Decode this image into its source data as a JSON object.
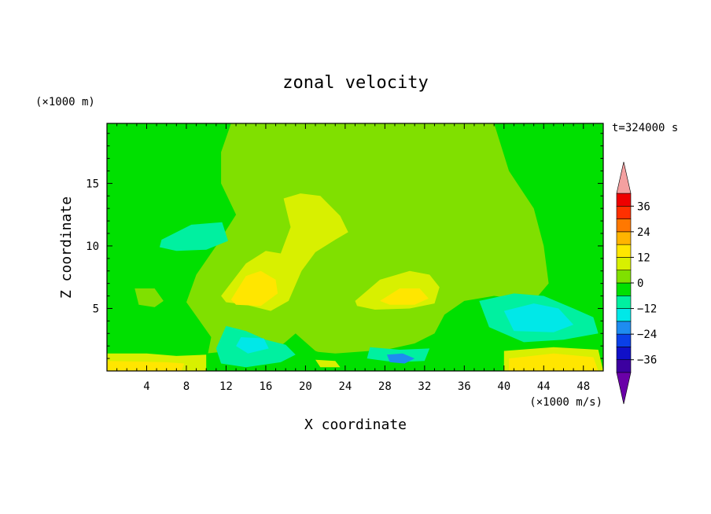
{
  "chart_data": {
    "type": "heatmap",
    "subtype": "filled-contour",
    "title": "zonal velocity",
    "xlabel": "X coordinate",
    "ylabel": "Z coordinate",
    "x_unit_label": "(×1000 m/s)",
    "y_unit_label": "(×1000 m)",
    "time_label": "t=324000 s",
    "xlim": [
      0,
      50
    ],
    "ylim": [
      0,
      19.8
    ],
    "x_ticks": [
      4,
      8,
      12,
      16,
      20,
      24,
      28,
      32,
      36,
      40,
      44,
      48
    ],
    "y_ticks": [
      5,
      10,
      15
    ],
    "colorbar": {
      "levels": [
        -42,
        -36,
        -30,
        -24,
        -18,
        -12,
        -6,
        0,
        6,
        12,
        18,
        24,
        30,
        36,
        42
      ],
      "tick_labels": [
        -36,
        -24,
        -12,
        0,
        12,
        24,
        36
      ],
      "colors": [
        "#6a00a8",
        "#3c00a0",
        "#1010c8",
        "#0a40e8",
        "#1e8cf0",
        "#00e8e8",
        "#00f0a0",
        "#00e000",
        "#80e000",
        "#d8f000",
        "#ffe600",
        "#ffb400",
        "#ff7800",
        "#ff3000",
        "#ee0000",
        "#f4a0a0"
      ],
      "extend": "both"
    },
    "regions": [
      {
        "value": -3,
        "path": [
          [
            0,
            19.8
          ],
          [
            50,
            19.8
          ],
          [
            50,
            0
          ],
          [
            0,
            0
          ]
        ]
      },
      {
        "value": 3,
        "path": [
          [
            12.5,
            19.8
          ],
          [
            39,
            19.8
          ],
          [
            40.5,
            16
          ],
          [
            43,
            13
          ],
          [
            44,
            10
          ],
          [
            44.5,
            7
          ],
          [
            43,
            5.6
          ],
          [
            39,
            6
          ],
          [
            36,
            5.6
          ],
          [
            34,
            4.5
          ],
          [
            33,
            3
          ],
          [
            31,
            2.2
          ],
          [
            27,
            1.5
          ],
          [
            23,
            1
          ],
          [
            21,
            1.6
          ],
          [
            19,
            3
          ],
          [
            16.5,
            1.3
          ],
          [
            13,
            0.8
          ],
          [
            10,
            0.7
          ],
          [
            10.5,
            2.7
          ],
          [
            8,
            5.5
          ],
          [
            9,
            7.7
          ],
          [
            11,
            10
          ],
          [
            13,
            12.5
          ],
          [
            11.5,
            15
          ],
          [
            11.5,
            17.5
          ]
        ]
      },
      {
        "value": -3,
        "path": [
          [
            0,
            0
          ],
          [
            50,
            0
          ],
          [
            50,
            1.7
          ],
          [
            45,
            2
          ],
          [
            40,
            1.7
          ],
          [
            35,
            1.5
          ],
          [
            30,
            1.8
          ],
          [
            23,
            1.4
          ],
          [
            16,
            1.9
          ],
          [
            10,
            1.4
          ],
          [
            5,
            1.2
          ],
          [
            0,
            1.4
          ]
        ]
      },
      {
        "value": -9,
        "path": [
          [
            12,
            3.6
          ],
          [
            14,
            3.2
          ],
          [
            16,
            2.5
          ],
          [
            18,
            2.1
          ],
          [
            19,
            1.3
          ],
          [
            17.5,
            0.7
          ],
          [
            14,
            0.3
          ],
          [
            11.5,
            0.6
          ],
          [
            11,
            1.8
          ]
        ]
      },
      {
        "value": -9,
        "path": [
          [
            37.5,
            5.6
          ],
          [
            41,
            6.2
          ],
          [
            44,
            6
          ],
          [
            47,
            5
          ],
          [
            49,
            4.3
          ],
          [
            49.5,
            3
          ],
          [
            46,
            2.5
          ],
          [
            42,
            2.3
          ],
          [
            38.5,
            3.5
          ]
        ]
      },
      {
        "value": -15,
        "path": [
          [
            40,
            4.8
          ],
          [
            43,
            5.4
          ],
          [
            45.5,
            5
          ],
          [
            47,
            3.7
          ],
          [
            45,
            3.1
          ],
          [
            41,
            3.2
          ]
        ]
      },
      {
        "value": -15,
        "path": [
          [
            13.5,
            2.7
          ],
          [
            15.8,
            2.6
          ],
          [
            16.3,
            1.8
          ],
          [
            14.2,
            1.4
          ],
          [
            13,
            2
          ]
        ]
      },
      {
        "value": -9,
        "path": [
          [
            26.5,
            1.9
          ],
          [
            29.5,
            1.7
          ],
          [
            32.5,
            1.8
          ],
          [
            32,
            0.8
          ],
          [
            29,
            0.7
          ],
          [
            26.2,
            1
          ]
        ]
      },
      {
        "value": -21,
        "path": [
          [
            28.2,
            1.3
          ],
          [
            29.8,
            1.4
          ],
          [
            31,
            1
          ],
          [
            30,
            0.6
          ],
          [
            28.5,
            0.7
          ]
        ]
      },
      {
        "value": -9,
        "path": [
          [
            5.5,
            10.5
          ],
          [
            8.5,
            11.7
          ],
          [
            11.6,
            11.9
          ],
          [
            12.2,
            10.4
          ],
          [
            10,
            9.7
          ],
          [
            7,
            9.6
          ],
          [
            5.3,
            9.9
          ]
        ]
      },
      {
        "value": 9,
        "path": [
          [
            11.5,
            6
          ],
          [
            14,
            8.6
          ],
          [
            16,
            9.6
          ],
          [
            17.5,
            9.4
          ],
          [
            18.5,
            11.5
          ],
          [
            17.8,
            13.8
          ],
          [
            19.5,
            14.2
          ],
          [
            21.5,
            14
          ],
          [
            23.5,
            12.4
          ],
          [
            24.3,
            11.1
          ],
          [
            23,
            10.5
          ],
          [
            21,
            9.5
          ],
          [
            19.6,
            8
          ],
          [
            18.3,
            5.6
          ],
          [
            16.5,
            4.8
          ],
          [
            14,
            5.3
          ],
          [
            12,
            5.5
          ]
        ]
      },
      {
        "value": 9,
        "path": [
          [
            25,
            5.6
          ],
          [
            27.5,
            7.3
          ],
          [
            30.5,
            8
          ],
          [
            32.5,
            7.7
          ],
          [
            33.5,
            6.7
          ],
          [
            33,
            5.4
          ],
          [
            30.5,
            5
          ],
          [
            27,
            4.9
          ],
          [
            25.2,
            5.2
          ]
        ]
      },
      {
        "value": 15,
        "path": [
          [
            12.5,
            5.7
          ],
          [
            14,
            7.6
          ],
          [
            15.5,
            8
          ],
          [
            17,
            7.3
          ],
          [
            17.2,
            6.2
          ],
          [
            15.5,
            5.2
          ],
          [
            13,
            5.3
          ]
        ]
      },
      {
        "value": 15,
        "path": [
          [
            27.5,
            5.6
          ],
          [
            29.5,
            6.6
          ],
          [
            31.5,
            6.6
          ],
          [
            32.4,
            5.8
          ],
          [
            31,
            5.3
          ],
          [
            28.5,
            5.3
          ]
        ]
      },
      {
        "value": 9,
        "path": [
          [
            0,
            1.4
          ],
          [
            4,
            1.4
          ],
          [
            7,
            1.2
          ],
          [
            10,
            1.3
          ],
          [
            10,
            0
          ],
          [
            0,
            0
          ]
        ]
      },
      {
        "value": 15,
        "path": [
          [
            0,
            0.8
          ],
          [
            6,
            0.7
          ],
          [
            7.8,
            0.6
          ],
          [
            7.5,
            0
          ],
          [
            0,
            0
          ]
        ]
      },
      {
        "value": 9,
        "path": [
          [
            40,
            1.6
          ],
          [
            45,
            1.9
          ],
          [
            49.5,
            1.7
          ],
          [
            50,
            0
          ],
          [
            40,
            0
          ]
        ]
      },
      {
        "value": 15,
        "path": [
          [
            40.5,
            1
          ],
          [
            45,
            1.4
          ],
          [
            49,
            1.1
          ],
          [
            49.5,
            0
          ],
          [
            40.5,
            0
          ]
        ]
      },
      {
        "value": 9,
        "path": [
          [
            21,
            0.9
          ],
          [
            23,
            0.8
          ],
          [
            23.5,
            0.3
          ],
          [
            21.5,
            0.3
          ]
        ]
      },
      {
        "value": 3,
        "path": [
          [
            2.8,
            6.6
          ],
          [
            4.8,
            6.6
          ],
          [
            5.7,
            5.6
          ],
          [
            4.8,
            5.1
          ],
          [
            3.2,
            5.3
          ]
        ]
      }
    ]
  }
}
